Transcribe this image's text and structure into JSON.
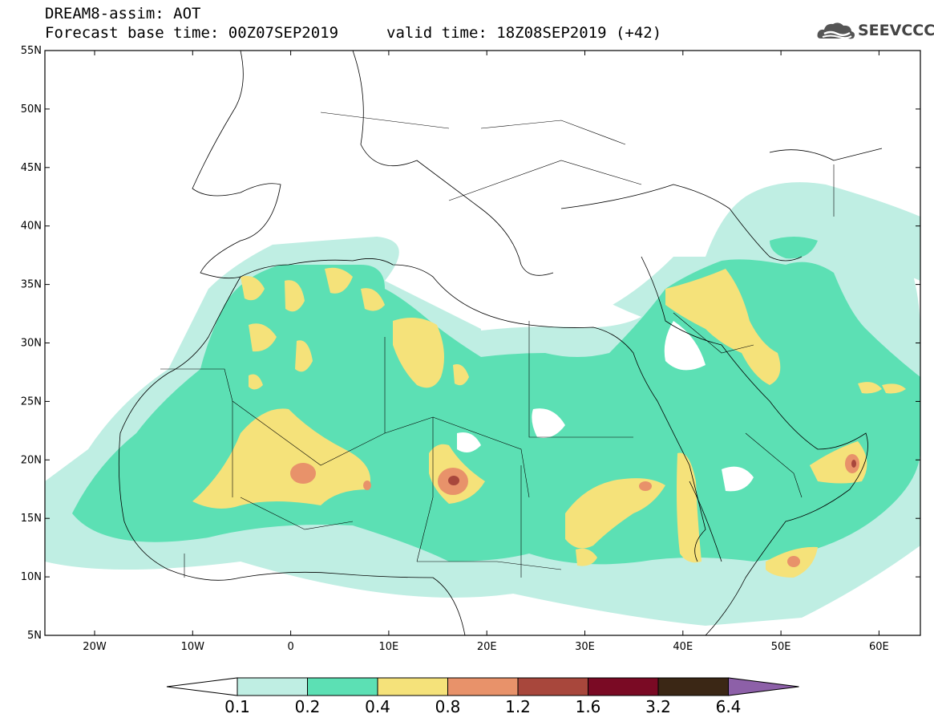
{
  "header": {
    "product": "DREAM8-assim: AOT",
    "base_time": "Forecast base time: 00Z07SEP2019",
    "valid_time": "valid time: 18Z08SEP2019 (+42)"
  },
  "logo": {
    "icon": "cloud-logo-icon",
    "text": "SEEVCCC"
  },
  "map_axes": {
    "lat_labels": [
      "55N",
      "50N",
      "45N",
      "40N",
      "35N",
      "30N",
      "25N",
      "20N",
      "15N",
      "10N",
      "5N"
    ],
    "lon_labels": [
      "20W",
      "10W",
      "0",
      "10E",
      "20E",
      "30E",
      "40E",
      "50E",
      "60E"
    ]
  },
  "colorbar": {
    "labels": [
      "0.1",
      "0.2",
      "0.4",
      "0.8",
      "1.2",
      "1.6",
      "3.2",
      "6.4"
    ],
    "colors": [
      "#ffffff",
      "#bfeee3",
      "#5ce0b4",
      "#f5e27a",
      "#e8926a",
      "#a8473c",
      "#7a0a24",
      "#3b2715",
      "#8d60a8"
    ]
  },
  "palette": {
    "light": "#bfeee3",
    "green": "#5ce0b4",
    "yellow": "#f5e27a",
    "orange": "#e8926a",
    "brown": "#a8473c"
  }
}
